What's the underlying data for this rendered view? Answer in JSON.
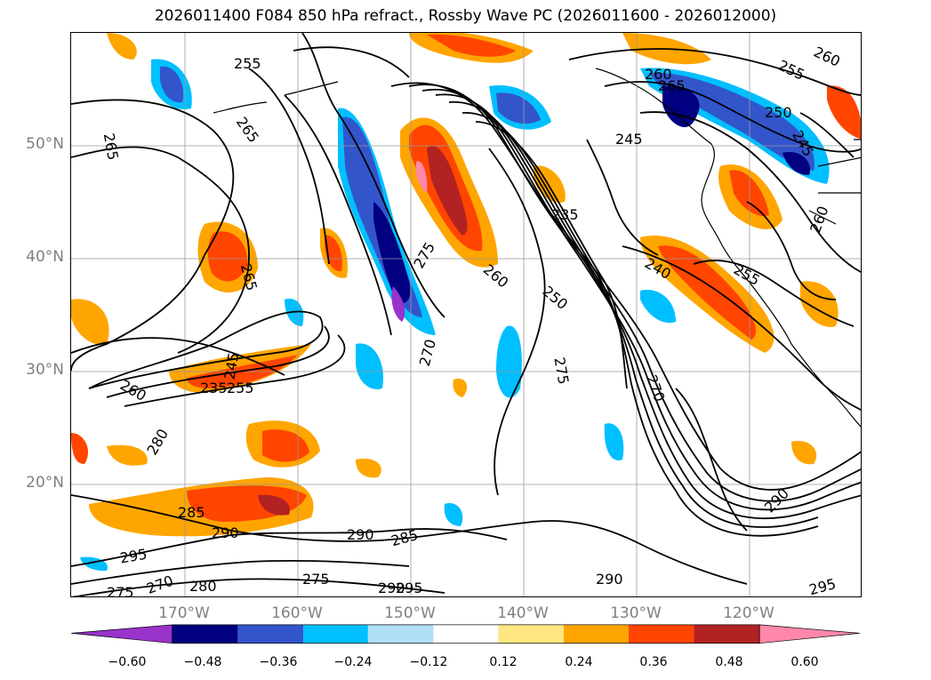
{
  "title": "2026011400 F084 850 hPa refract., Rossby Wave PC (2026011600 - 2026012000)",
  "lat_labels": [
    "50°N",
    "40°N",
    "30°N",
    "20°N"
  ],
  "lon_labels": [
    "170°W",
    "160°W",
    "150°W",
    "140°W",
    "130°W",
    "120°W"
  ],
  "contour_labels": [
    "255",
    "265",
    "265",
    "265",
    "245",
    "235",
    "260",
    "265",
    "275",
    "260",
    "250",
    "240",
    "255",
    "260",
    "245",
    "250",
    "255",
    "260",
    "270",
    "275",
    "270",
    "260",
    "235",
    "255",
    "245",
    "280",
    "285",
    "290",
    "290",
    "285",
    "295",
    "275",
    "270",
    "280",
    "275",
    "290",
    "295",
    "290",
    "290",
    "295"
  ],
  "colorbar": {
    "ticks": [
      "−0.60",
      "−0.48",
      "−0.36",
      "−0.24",
      "−0.12",
      "0.12",
      "0.24",
      "0.36",
      "0.48",
      "0.60"
    ],
    "colors": [
      "#9933cc",
      "#000080",
      "#3355cc",
      "#00bfff",
      "#b0e0f8",
      "#ffffff",
      "#ffe680",
      "#ffa500",
      "#ff4500",
      "#b22222",
      "#ff88aa"
    ]
  }
}
